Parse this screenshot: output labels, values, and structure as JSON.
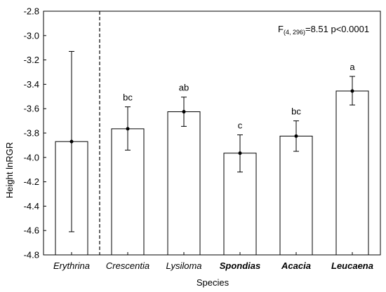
{
  "chart_data": {
    "type": "bar",
    "xlabel": "Species",
    "ylabel": "Height lnRGR",
    "ylim": [
      -4.8,
      -2.8
    ],
    "yticks": [
      "-2.8",
      "-3.0",
      "-3.2",
      "-3.4",
      "-3.6",
      "-3.8",
      "-4.0",
      "-4.2",
      "-4.4",
      "-4.6",
      "-4.8"
    ],
    "categories": [
      "Erythrina",
      "Crescentia",
      "Lysiloma",
      "Spondias",
      "Acacia",
      "Leucaena"
    ],
    "bold_categories": [
      "Spondias",
      "Acacia",
      "Leucaena"
    ],
    "values": [
      -3.87,
      -3.765,
      -3.625,
      -3.965,
      -3.825,
      -3.455
    ],
    "error_low": [
      -4.61,
      -3.94,
      -3.745,
      -4.12,
      -3.95,
      -3.57
    ],
    "error_high": [
      -3.13,
      -3.585,
      -3.505,
      -3.815,
      -3.7,
      -3.335
    ],
    "significance_letters": [
      "",
      "bc",
      "ab",
      "c",
      "bc",
      "a"
    ],
    "separator_after_index": 0,
    "annotation": {
      "prefix": "F",
      "subscript": "(4, 296)",
      "text": "=8.51 p<0.0001"
    },
    "grid": false,
    "bar_color": "#ffffff",
    "line_color": "#000000"
  }
}
